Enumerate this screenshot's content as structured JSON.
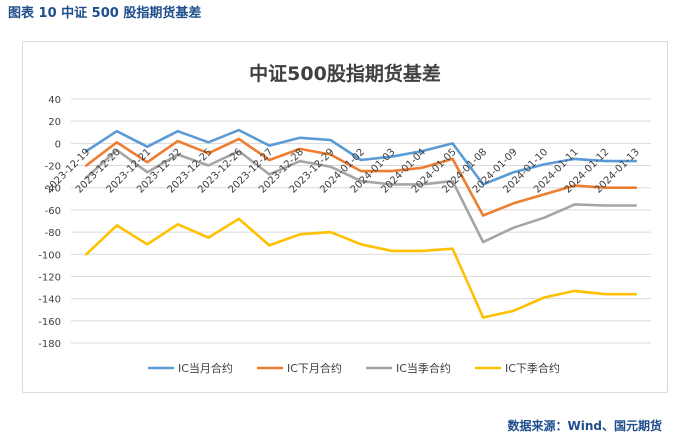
{
  "figure": {
    "label": "图表 10",
    "caption": "中证 500 股指期货基差",
    "source": "数据来源：Wind、国元期货"
  },
  "chart_data": {
    "type": "line",
    "title": "中证500股指期货基差",
    "xlabel": "",
    "ylabel": "",
    "ylim": [
      -180,
      40
    ],
    "yticks": [
      40,
      20,
      0,
      -20,
      -40,
      -60,
      -80,
      -100,
      -120,
      -140,
      -160,
      -180
    ],
    "grid": true,
    "legend_position": "bottom",
    "categories": [
      "2023-12-19",
      "2023-12-20",
      "2023-12-21",
      "2023-12-22",
      "2023-12-25",
      "2023-12-26",
      "2023-12-27",
      "2023-12-28",
      "2023-12-29",
      "2024-01-02",
      "2024-01-03",
      "2024-01-04",
      "2024-01-05",
      "2024-01-08",
      "2024-01-09",
      "2024-01-10",
      "2024-01-11",
      "2024-01-12",
      "2024-01-13"
    ],
    "series": [
      {
        "name": "IC当月合约",
        "color": "#5b9bd5",
        "values": [
          -7,
          11,
          -3,
          11,
          1,
          12,
          -2,
          5,
          3,
          -15,
          -12,
          -7,
          0,
          -37,
          -26,
          -19,
          -14,
          -16,
          -16
        ]
      },
      {
        "name": "IC下月合约",
        "color": "#ed7d31",
        "values": [
          -20,
          1,
          -17,
          2,
          -9,
          4,
          -15,
          -5,
          -10,
          -25,
          -25,
          -22,
          -14,
          -65,
          -54,
          -46,
          -38,
          -40,
          -40
        ]
      },
      {
        "name": "IC当季合约",
        "color": "#a5a5a5",
        "values": [
          -31,
          -6,
          -26,
          -10,
          -20,
          -7,
          -28,
          -16,
          -21,
          -34,
          -37,
          -37,
          -34,
          -89,
          -76,
          -67,
          -55,
          -56,
          -56
        ]
      },
      {
        "name": "IC下季合约",
        "color": "#ffc000",
        "values": [
          -100,
          -74,
          -91,
          -73,
          -85,
          -68,
          -92,
          -82,
          -80,
          -91,
          -97,
          -97,
          -95,
          -157,
          -151,
          -139,
          -133,
          -136,
          -136
        ]
      }
    ]
  }
}
